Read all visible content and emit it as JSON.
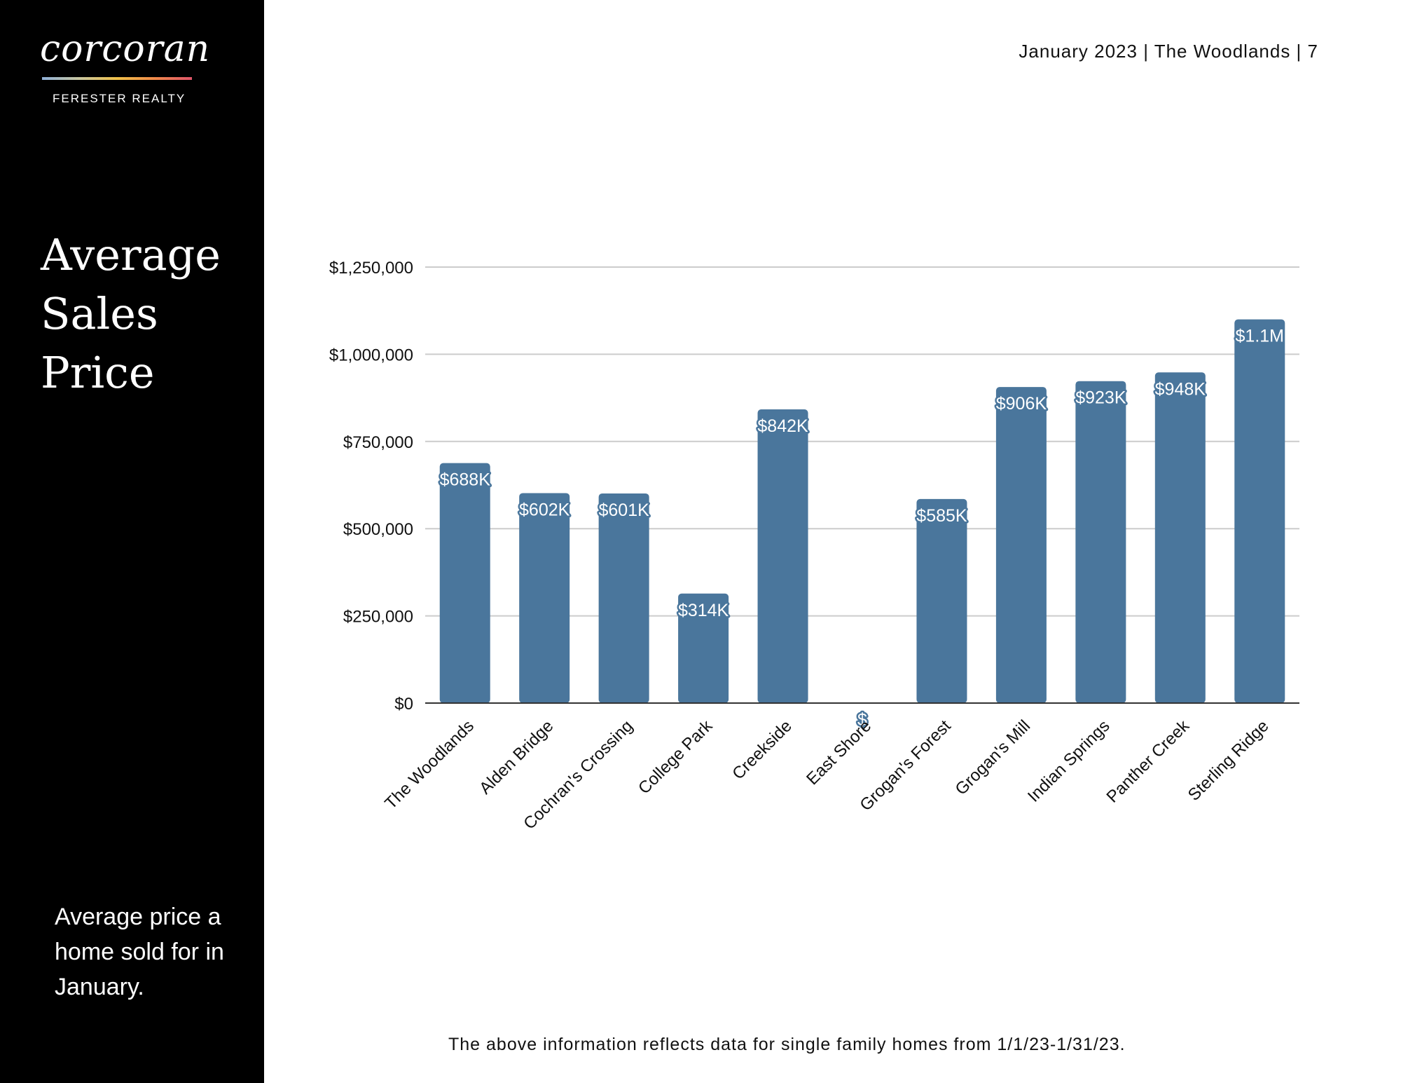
{
  "brand": {
    "name": "corcoran",
    "subtitle": "FERESTER REALTY"
  },
  "header": {
    "text": "January 2023 | The Woodlands | 7"
  },
  "sidebar": {
    "title": "Average Sales Price",
    "note": "Average price a home sold for in January."
  },
  "footnote": "The above information reflects data for single family homes from 1/1/23-1/31/23.",
  "colors": {
    "bar": "#4a769c",
    "sidebar": "#000000",
    "grid": "#cccccc"
  },
  "chart_data": {
    "type": "bar",
    "title": "",
    "xlabel": "",
    "ylabel": "",
    "ylim": [
      0,
      1250000
    ],
    "yticks": [
      0,
      250000,
      500000,
      750000,
      1000000,
      1250000
    ],
    "ytick_labels": [
      "$0",
      "$250,000",
      "$500,000",
      "$750,000",
      "$1,000,000",
      "$1,250,000"
    ],
    "grid": true,
    "categories": [
      "The Woodlands",
      "Alden Bridge",
      "Cochran's Crossing",
      "College Park",
      "Creekside",
      "East Shore",
      "Grogan's Forest",
      "Grogan's Mill",
      "Indian Springs",
      "Panther Creek",
      "Sterling Ridge"
    ],
    "values": [
      688000,
      602000,
      601000,
      314000,
      842000,
      0,
      585000,
      906000,
      923000,
      948000,
      1100000
    ],
    "data_labels": [
      "$688K",
      "$602K",
      "$601K",
      "$314K",
      "$842K",
      "$",
      "$585K",
      "$906K",
      "$923K",
      "$948K",
      "$1.1M"
    ]
  }
}
